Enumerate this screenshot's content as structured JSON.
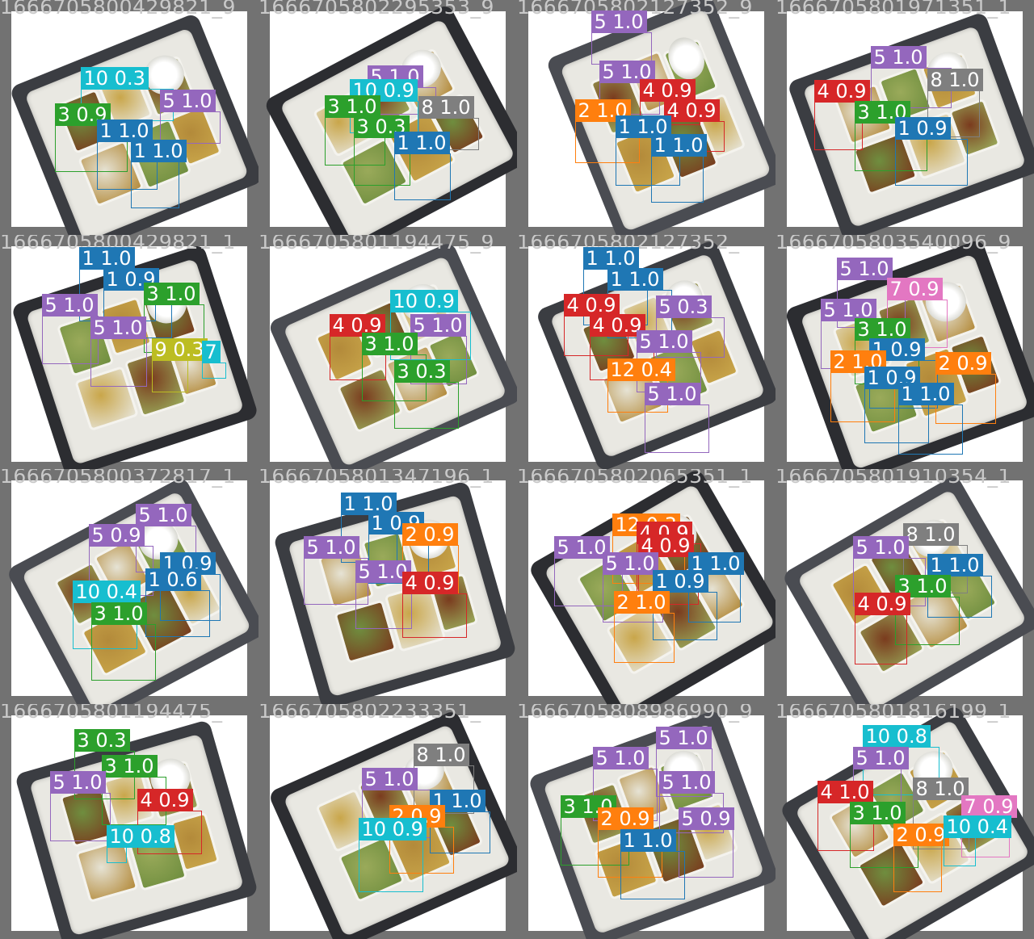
{
  "title": "",
  "class_colors": {
    "1": "#1f77b4",
    "2": "#ff7f0e",
    "3": "#2ca02c",
    "4": "#d62728",
    "5": "#9467bd",
    "7": "#e377c2",
    "8": "#7f7f7f",
    "9": "#bcbd22",
    "10": "#17becf",
    "12": "#ff7f0e"
  },
  "images": [
    {
      "filename": "1666705800429821_9",
      "detections": [
        {
          "label": "10 0.3",
          "cls": "10"
        },
        {
          "label": "5 1.0",
          "cls": "5"
        },
        {
          "label": "3 0.9",
          "cls": "3"
        },
        {
          "label": "1 1.0",
          "cls": "1"
        },
        {
          "label": "1 1.0",
          "cls": "1"
        }
      ]
    },
    {
      "filename": "1666705802295353_9",
      "detections": [
        {
          "label": "5 1.0",
          "cls": "5"
        },
        {
          "label": "10 0.9",
          "cls": "10"
        },
        {
          "label": "3 1.0",
          "cls": "3"
        },
        {
          "label": "8 1.0",
          "cls": "8"
        },
        {
          "label": "3 0.3",
          "cls": "3"
        },
        {
          "label": "1 1.0",
          "cls": "1"
        }
      ]
    },
    {
      "filename": "1666705802127352_9",
      "detections": [
        {
          "label": "5 1.0",
          "cls": "5"
        },
        {
          "label": "5 1.0",
          "cls": "5"
        },
        {
          "label": "4 0.9",
          "cls": "4"
        },
        {
          "label": "2 1.0",
          "cls": "2"
        },
        {
          "label": "4 0.9",
          "cls": "4"
        },
        {
          "label": "1 1.0",
          "cls": "1"
        },
        {
          "label": "1 1.0",
          "cls": "1"
        }
      ]
    },
    {
      "filename": "1666705801971351_1",
      "detections": [
        {
          "label": "5 1.0",
          "cls": "5"
        },
        {
          "label": "4 0.9",
          "cls": "4"
        },
        {
          "label": "8 1.0",
          "cls": "8"
        },
        {
          "label": "3 1.0",
          "cls": "3"
        },
        {
          "label": "1 0.9",
          "cls": "1"
        }
      ]
    },
    {
      "filename": "1666705800429821_1",
      "detections": [
        {
          "label": "1 1.0",
          "cls": "1"
        },
        {
          "label": "1 0.9",
          "cls": "1"
        },
        {
          "label": "3 1.0",
          "cls": "3"
        },
        {
          "label": "5 1.0",
          "cls": "5"
        },
        {
          "label": "5 1.0",
          "cls": "5"
        },
        {
          "label": "9 0.3",
          "cls": "9"
        },
        {
          "label": "7",
          "cls": "10"
        }
      ]
    },
    {
      "filename": "1666705801194475_9",
      "detections": [
        {
          "label": "4 0.9",
          "cls": "4"
        },
        {
          "label": "10 0.9",
          "cls": "10"
        },
        {
          "label": "5 1.0",
          "cls": "5"
        },
        {
          "label": "3 1.0",
          "cls": "3"
        },
        {
          "label": "3 0.3",
          "cls": "3"
        }
      ]
    },
    {
      "filename": "1666705802127352_",
      "detections": [
        {
          "label": "1 1.0",
          "cls": "1"
        },
        {
          "label": "1 1.0",
          "cls": "1"
        },
        {
          "label": "4 0.9",
          "cls": "4"
        },
        {
          "label": "5 0.3",
          "cls": "5"
        },
        {
          "label": "4 0.9",
          "cls": "4"
        },
        {
          "label": "5 1.0",
          "cls": "5"
        },
        {
          "label": "12 0.4",
          "cls": "12"
        },
        {
          "label": "5 1.0",
          "cls": "5"
        }
      ]
    },
    {
      "filename": "1666705803540096_9",
      "detections": [
        {
          "label": "5 1.0",
          "cls": "5"
        },
        {
          "label": "7 0.9",
          "cls": "7"
        },
        {
          "label": "5 1.0",
          "cls": "5"
        },
        {
          "label": "3 1.0",
          "cls": "3"
        },
        {
          "label": "1 0.9",
          "cls": "1"
        },
        {
          "label": "2 1.0",
          "cls": "2"
        },
        {
          "label": "2 0.9",
          "cls": "2"
        },
        {
          "label": "1 0.9",
          "cls": "1"
        },
        {
          "label": "1 1.0",
          "cls": "1"
        }
      ]
    },
    {
      "filename": "1666705800372817_1",
      "detections": [
        {
          "label": "5 1.0",
          "cls": "5"
        },
        {
          "label": "5 0.9",
          "cls": "5"
        },
        {
          "label": "1 0.9",
          "cls": "1"
        },
        {
          "label": "1 0.6",
          "cls": "1"
        },
        {
          "label": "10 0.4",
          "cls": "10"
        },
        {
          "label": "3 1.0",
          "cls": "3"
        }
      ]
    },
    {
      "filename": "1666705801347196_1",
      "detections": [
        {
          "label": "1 1.0",
          "cls": "1"
        },
        {
          "label": "1 0.9",
          "cls": "1"
        },
        {
          "label": "2 0.9",
          "cls": "2"
        },
        {
          "label": "5 1.0",
          "cls": "5"
        },
        {
          "label": "5 1.0",
          "cls": "5"
        },
        {
          "label": "4 0.9",
          "cls": "4"
        }
      ]
    },
    {
      "filename": "1666705802065351_1",
      "detections": [
        {
          "label": "12 0.3",
          "cls": "12"
        },
        {
          "label": "4 0.9",
          "cls": "4"
        },
        {
          "label": "4 0.9",
          "cls": "4"
        },
        {
          "label": "5 1.0",
          "cls": "5"
        },
        {
          "label": "5 1.0",
          "cls": "5"
        },
        {
          "label": "1 1.0",
          "cls": "1"
        },
        {
          "label": "1 0.9",
          "cls": "1"
        },
        {
          "label": "2 1.0",
          "cls": "2"
        }
      ]
    },
    {
      "filename": "1666705801910354_1",
      "detections": [
        {
          "label": "8 1.0",
          "cls": "8"
        },
        {
          "label": "5 1.0",
          "cls": "5"
        },
        {
          "label": "1 1.0",
          "cls": "1"
        },
        {
          "label": "3 1.0",
          "cls": "3"
        },
        {
          "label": "4 0.9",
          "cls": "4"
        }
      ]
    },
    {
      "filename": "1666705801194475_",
      "detections": [
        {
          "label": "3 0.3",
          "cls": "3"
        },
        {
          "label": "3 1.0",
          "cls": "3"
        },
        {
          "label": "5 1.0",
          "cls": "5"
        },
        {
          "label": "4 0.9",
          "cls": "4"
        },
        {
          "label": "10 0.8",
          "cls": "10"
        }
      ]
    },
    {
      "filename": "1666705802233351_",
      "detections": [
        {
          "label": "8 1.0",
          "cls": "8"
        },
        {
          "label": "5 1.0",
          "cls": "5"
        },
        {
          "label": "1 1.0",
          "cls": "1"
        },
        {
          "label": "2 0.9",
          "cls": "2"
        },
        {
          "label": "10 0.9",
          "cls": "10"
        }
      ]
    },
    {
      "filename": "1666705808986990_9",
      "detections": [
        {
          "label": "5 1.0",
          "cls": "5"
        },
        {
          "label": "5 1.0",
          "cls": "5"
        },
        {
          "label": "5 1.0",
          "cls": "5"
        },
        {
          "label": "3 1.0",
          "cls": "3"
        },
        {
          "label": "5 0.9",
          "cls": "5"
        },
        {
          "label": "2 0.9",
          "cls": "2"
        },
        {
          "label": "1 1.0",
          "cls": "1"
        }
      ]
    },
    {
      "filename": "1666705801816199_1",
      "detections": [
        {
          "label": "10 0.8",
          "cls": "10"
        },
        {
          "label": "5 1.0",
          "cls": "5"
        },
        {
          "label": "4 1.0",
          "cls": "4"
        },
        {
          "label": "8 1.0",
          "cls": "8"
        },
        {
          "label": "7 0.9",
          "cls": "7"
        },
        {
          "label": "3 1.0",
          "cls": "3"
        },
        {
          "label": "2 0.9",
          "cls": "2"
        },
        {
          "label": "10 0.4",
          "cls": "10"
        }
      ]
    }
  ]
}
